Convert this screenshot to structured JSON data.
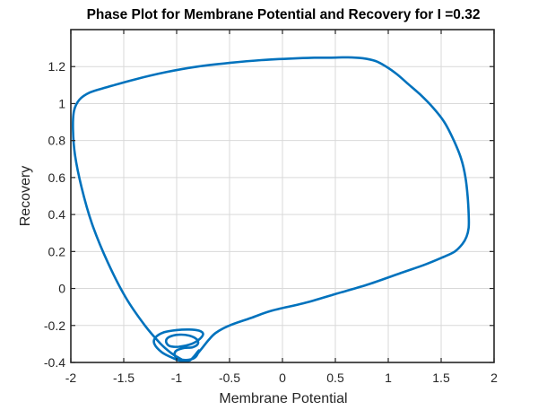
{
  "chart_data": {
    "type": "line",
    "title": "Phase Plot for Membrane Potential and Recovery for I =0.32",
    "xlabel": "Membrane Potential",
    "ylabel": "Recovery",
    "xlim": [
      -2,
      2
    ],
    "ylim": [
      -0.4,
      1.4
    ],
    "xticks": [
      -2,
      -1.5,
      -1,
      -0.5,
      0,
      0.5,
      1,
      1.5,
      2
    ],
    "yticks": [
      -0.4,
      -0.2,
      0,
      0.2,
      0.4,
      0.6,
      0.8,
      1,
      1.2
    ],
    "xtick_labels": [
      "-2",
      "-1.5",
      "-1",
      "-0.5",
      "0",
      "0.5",
      "1",
      "1.5",
      "2"
    ],
    "ytick_labels": [
      "-0.4",
      "-0.2",
      "0",
      "0.2",
      "0.4",
      "0.6",
      "0.8",
      "1",
      "1.2"
    ],
    "grid": true,
    "series": [
      {
        "color": "#0072bd",
        "x": [
          -0.79,
          -0.82,
          -0.88,
          -0.95,
          -1.0,
          -1.02,
          -1.0,
          -0.93,
          -0.85,
          -0.8,
          -0.81,
          -0.88,
          -0.98,
          -1.07,
          -1.1,
          -1.07,
          -0.98,
          -0.86,
          -0.78,
          -0.75,
          -0.79,
          -0.88,
          -1.0,
          -1.12,
          -1.2,
          -1.21,
          -1.14,
          -1.04,
          -0.95,
          -0.85,
          -0.77,
          -0.7,
          -0.63,
          -0.5,
          -0.3,
          -0.1,
          0.2,
          0.5,
          0.8,
          1.1,
          1.35,
          1.52,
          1.63,
          1.7,
          1.74,
          1.76,
          1.76,
          1.75,
          1.73,
          1.69,
          1.62,
          1.53,
          1.42,
          1.3,
          1.18,
          1.08,
          0.98,
          0.88,
          0.76,
          0.62,
          0.45,
          0.3,
          0.1,
          -0.2,
          -0.5,
          -0.8,
          -1.1,
          -1.4,
          -1.65,
          -1.82,
          -1.92,
          -1.97,
          -1.98,
          -1.96,
          -1.9,
          -1.8,
          -1.65,
          -1.48,
          -1.3,
          -1.15,
          -1.05,
          -0.98,
          -0.93,
          -0.88,
          -0.84
        ],
        "y": [
          -0.335,
          -0.37,
          -0.385,
          -0.385,
          -0.375,
          -0.355,
          -0.335,
          -0.322,
          -0.318,
          -0.3,
          -0.275,
          -0.255,
          -0.25,
          -0.262,
          -0.285,
          -0.31,
          -0.315,
          -0.3,
          -0.272,
          -0.245,
          -0.228,
          -0.222,
          -0.225,
          -0.237,
          -0.265,
          -0.3,
          -0.345,
          -0.375,
          -0.392,
          -0.38,
          -0.33,
          -0.28,
          -0.24,
          -0.2,
          -0.16,
          -0.12,
          -0.08,
          -0.03,
          0.02,
          0.08,
          0.13,
          0.17,
          0.2,
          0.24,
          0.28,
          0.33,
          0.4,
          0.5,
          0.6,
          0.7,
          0.8,
          0.9,
          0.98,
          1.05,
          1.11,
          1.16,
          1.2,
          1.23,
          1.245,
          1.25,
          1.248,
          1.248,
          1.244,
          1.235,
          1.22,
          1.2,
          1.17,
          1.13,
          1.09,
          1.06,
          1.02,
          0.96,
          0.86,
          0.72,
          0.55,
          0.35,
          0.14,
          -0.05,
          -0.2,
          -0.3,
          -0.35,
          -0.375,
          -0.39,
          -0.39,
          -0.37
        ]
      }
    ]
  }
}
